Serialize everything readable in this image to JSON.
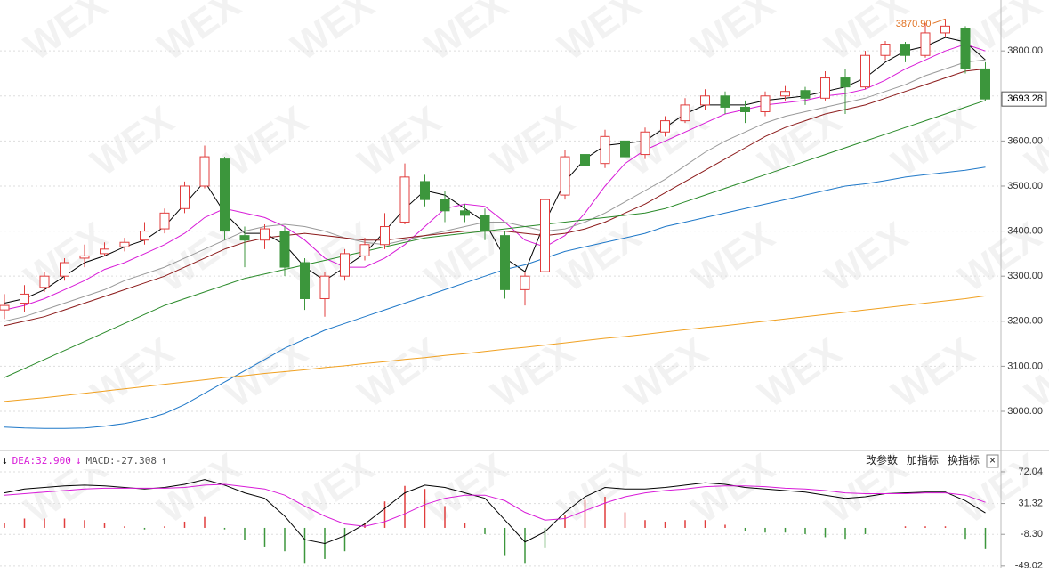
{
  "chart_data": [
    {
      "type": "candlestick",
      "watermark": "WEX",
      "up_color": "#e03c3c",
      "down_color": "#3c963c",
      "open": [
        3225,
        3240,
        3275,
        3300,
        3340,
        3350,
        3365,
        3380,
        3405,
        3450,
        3500,
        3560,
        3390,
        3380,
        3400,
        3330,
        3250,
        3300,
        3345,
        3370,
        3420,
        3510,
        3470,
        3445,
        3435,
        3390,
        3270,
        3310,
        3480,
        3570,
        3550,
        3600,
        3570,
        3620,
        3645,
        3680,
        3700,
        3675,
        3665,
        3700,
        3712,
        3695,
        3740,
        3720,
        3790,
        3815,
        3790,
        3840,
        3850,
        3760
      ],
      "high": [
        3260,
        3280,
        3310,
        3340,
        3370,
        3375,
        3385,
        3420,
        3450,
        3510,
        3590,
        3565,
        3410,
        3415,
        3410,
        3340,
        3310,
        3360,
        3385,
        3440,
        3550,
        3525,
        3490,
        3460,
        3450,
        3400,
        3310,
        3480,
        3580,
        3645,
        3625,
        3610,
        3630,
        3655,
        3695,
        3715,
        3710,
        3690,
        3710,
        3722,
        3720,
        3755,
        3760,
        3800,
        3822,
        3820,
        3862,
        3870.9,
        3855,
        3775
      ],
      "low": [
        3205,
        3220,
        3265,
        3290,
        3320,
        3345,
        3355,
        3370,
        3395,
        3440,
        3495,
        3380,
        3320,
        3360,
        3300,
        3225,
        3210,
        3290,
        3335,
        3360,
        3415,
        3455,
        3420,
        3420,
        3380,
        3250,
        3235,
        3300,
        3470,
        3530,
        3540,
        3555,
        3560,
        3610,
        3640,
        3670,
        3660,
        3640,
        3655,
        3690,
        3680,
        3690,
        3660,
        3715,
        3780,
        3775,
        3785,
        3830,
        3750,
        3690
      ],
      "close": [
        3235,
        3260,
        3300,
        3330,
        3345,
        3360,
        3375,
        3400,
        3440,
        3500,
        3565,
        3400,
        3380,
        3405,
        3320,
        3250,
        3300,
        3350,
        3370,
        3410,
        3520,
        3470,
        3445,
        3435,
        3400,
        3270,
        3300,
        3470,
        3565,
        3545,
        3610,
        3565,
        3620,
        3645,
        3680,
        3700,
        3675,
        3665,
        3700,
        3710,
        3695,
        3740,
        3720,
        3790,
        3815,
        3790,
        3840,
        3855,
        3760,
        3693.28
      ],
      "ma_lines": [
        {
          "color": "#000000",
          "values": [
            3240,
            3250,
            3270,
            3300,
            3330,
            3345,
            3365,
            3380,
            3410,
            3460,
            3510,
            3440,
            3395,
            3395,
            3370,
            3320,
            3290,
            3320,
            3350,
            3400,
            3450,
            3490,
            3480,
            3450,
            3420,
            3340,
            3310,
            3420,
            3510,
            3560,
            3590,
            3595,
            3600,
            3630,
            3660,
            3680,
            3680,
            3680,
            3690,
            3695,
            3700,
            3710,
            3720,
            3740,
            3775,
            3800,
            3810,
            3830,
            3820,
            3780
          ]
        },
        {
          "color": "#d81bd8",
          "values": [
            3225,
            3235,
            3250,
            3270,
            3290,
            3315,
            3330,
            3350,
            3370,
            3395,
            3430,
            3450,
            3440,
            3430,
            3410,
            3380,
            3340,
            3320,
            3320,
            3340,
            3370,
            3410,
            3450,
            3460,
            3455,
            3420,
            3380,
            3365,
            3390,
            3440,
            3500,
            3550,
            3580,
            3600,
            3620,
            3640,
            3660,
            3670,
            3680,
            3685,
            3690,
            3700,
            3705,
            3715,
            3735,
            3760,
            3780,
            3800,
            3815,
            3800
          ]
        },
        {
          "color": "#999999",
          "values": [
            3200,
            3210,
            3225,
            3240,
            3255,
            3270,
            3290,
            3305,
            3320,
            3340,
            3360,
            3380,
            3400,
            3410,
            3415,
            3410,
            3400,
            3385,
            3375,
            3370,
            3380,
            3390,
            3400,
            3410,
            3420,
            3420,
            3410,
            3400,
            3405,
            3420,
            3440,
            3465,
            3490,
            3515,
            3545,
            3575,
            3600,
            3620,
            3640,
            3655,
            3665,
            3675,
            3685,
            3695,
            3710,
            3725,
            3745,
            3760,
            3775,
            3780
          ]
        },
        {
          "color": "#8b1a1a",
          "values": [
            3190,
            3200,
            3210,
            3225,
            3240,
            3255,
            3270,
            3285,
            3300,
            3320,
            3340,
            3360,
            3375,
            3385,
            3390,
            3395,
            3390,
            3385,
            3380,
            3380,
            3385,
            3390,
            3395,
            3400,
            3400,
            3400,
            3395,
            3390,
            3395,
            3405,
            3420,
            3440,
            3460,
            3485,
            3510,
            3535,
            3560,
            3585,
            3610,
            3630,
            3645,
            3660,
            3670,
            3680,
            3695,
            3710,
            3725,
            3740,
            3755,
            3760
          ]
        },
        {
          "color": "#2a8a2a",
          "values": [
            3075,
            3095,
            3115,
            3135,
            3155,
            3175,
            3195,
            3215,
            3235,
            3250,
            3265,
            3280,
            3295,
            3305,
            3315,
            3325,
            3335,
            3345,
            3355,
            3365,
            3375,
            3385,
            3390,
            3395,
            3400,
            3405,
            3410,
            3415,
            3420,
            3425,
            3430,
            3435,
            3440,
            3450,
            3465,
            3480,
            3495,
            3510,
            3525,
            3540,
            3555,
            3570,
            3585,
            3600,
            3615,
            3630,
            3645,
            3660,
            3675,
            3690
          ]
        },
        {
          "color": "#1f78c8",
          "values": [
            2965,
            2963,
            2962,
            2962,
            2963,
            2967,
            2973,
            2982,
            2995,
            3015,
            3040,
            3065,
            3090,
            3115,
            3140,
            3160,
            3180,
            3195,
            3210,
            3225,
            3240,
            3255,
            3270,
            3285,
            3300,
            3315,
            3325,
            3340,
            3355,
            3365,
            3375,
            3385,
            3395,
            3410,
            3420,
            3430,
            3440,
            3450,
            3460,
            3470,
            3480,
            3490,
            3500,
            3505,
            3512,
            3520,
            3525,
            3530,
            3535,
            3542
          ]
        },
        {
          "color": "#f0a020",
          "values": [
            3022,
            3026,
            3030,
            3035,
            3040,
            3045,
            3050,
            3055,
            3060,
            3065,
            3070,
            3075,
            3079,
            3084,
            3088,
            3092,
            3097,
            3101,
            3106,
            3110,
            3115,
            3119,
            3124,
            3128,
            3133,
            3138,
            3142,
            3147,
            3152,
            3157,
            3162,
            3166,
            3171,
            3176,
            3181,
            3186,
            3190,
            3195,
            3200,
            3205,
            3210,
            3215,
            3220,
            3225,
            3230,
            3235,
            3240,
            3245,
            3250,
            3256
          ]
        }
      ],
      "ylim": [
        2915,
        3913
      ],
      "yticks": [
        {
          "value": 3000,
          "label": "3000.00"
        },
        {
          "value": 3100,
          "label": "3100.00"
        },
        {
          "value": 3200,
          "label": "3200.00"
        },
        {
          "value": 3300,
          "label": "3300.00"
        },
        {
          "value": 3400,
          "label": "3400.00"
        },
        {
          "value": 3500,
          "label": "3500.00"
        },
        {
          "value": 3600,
          "label": "3600.00"
        },
        {
          "value": 3700,
          "label": "3700.00"
        },
        {
          "value": 3800,
          "label": "3800.00"
        }
      ],
      "grid": true,
      "max_label": {
        "value": 3870.9,
        "label": "3870.90",
        "color": "#e07020"
      },
      "last_price": {
        "value": 3693.28,
        "label": "3693.28"
      }
    },
    {
      "type": "macd",
      "header": [
        {
          "text": "↓",
          "color": "#000000"
        },
        {
          "text": "DEA:32.900",
          "color": "#d81bd8"
        },
        {
          "text": "↓",
          "color": "#d81bd8"
        },
        {
          "text": "MACD:-27.308",
          "color": "#555555"
        },
        {
          "text": "↑",
          "color": "#555555"
        }
      ],
      "buttons": [
        "改参数",
        "加指标",
        "换指标"
      ],
      "close": "×",
      "lines": [
        {
          "color": "#000000",
          "values": [
            45,
            50,
            52,
            54,
            55,
            54,
            52,
            50,
            52,
            56,
            62,
            55,
            45,
            38,
            15,
            -15,
            -20,
            -10,
            5,
            25,
            45,
            55,
            52,
            45,
            38,
            10,
            -18,
            -5,
            20,
            40,
            52,
            50,
            50,
            52,
            55,
            58,
            56,
            52,
            50,
            48,
            46,
            42,
            38,
            40,
            44,
            45,
            46,
            46,
            35,
            19.25
          ]
        },
        {
          "color": "#d81bd8",
          "values": [
            42,
            44,
            46,
            48,
            50,
            51,
            51,
            51,
            51,
            52,
            55,
            56,
            53,
            50,
            42,
            28,
            15,
            5,
            2,
            8,
            18,
            30,
            38,
            42,
            42,
            35,
            20,
            10,
            12,
            22,
            32,
            40,
            45,
            48,
            50,
            53,
            54,
            54,
            53,
            51,
            50,
            48,
            45,
            44,
            44,
            44,
            45,
            45,
            42,
            32.9
          ]
        }
      ],
      "histogram": {
        "up_color": "#e03c3c",
        "down_color": "#3c963c",
        "values": [
          6,
          12,
          12,
          12,
          10,
          6,
          2,
          -2,
          2,
          8,
          14,
          -2,
          -16,
          -24,
          -30,
          -45,
          -40,
          -30,
          6,
          34,
          54,
          50,
          28,
          6,
          -8,
          -35,
          -45,
          -25,
          16,
          36,
          40,
          20,
          10,
          8,
          10,
          10,
          4,
          -4,
          -6,
          -6,
          -8,
          -12,
          -14,
          -8,
          0,
          2,
          2,
          2,
          -14,
          -27.308
        ]
      },
      "ylim": [
        -51.5,
        98.3
      ],
      "yticks": [
        72.04,
        31.32,
        {
          "value": -8.3,
          "label": "-8.30"
        },
        -49.02
      ],
      "grid": true
    }
  ]
}
